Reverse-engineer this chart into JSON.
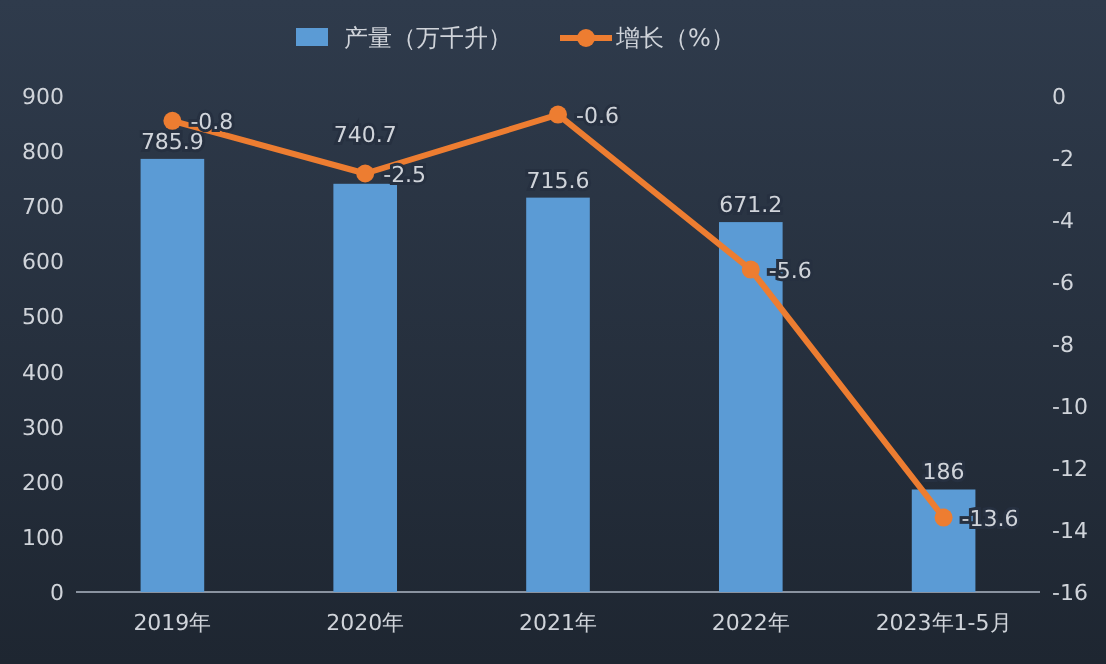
{
  "chart_data": {
    "type": "bar",
    "categories": [
      "2019年",
      "2020年",
      "2021年",
      "2022年",
      "2023年1-5月"
    ],
    "series": [
      {
        "name": "产量（万千升）",
        "color": "#5b9bd5",
        "values": [
          785.9,
          740.7,
          715.6,
          671.2,
          186
        ]
      },
      {
        "name": "增长（%）",
        "type": "line",
        "axis": "y2",
        "color": "#ed7d31",
        "values": [
          -0.8,
          -2.5,
          -0.6,
          -5.6,
          -13.6
        ]
      }
    ],
    "ylim": [
      0,
      900
    ],
    "yticks": [
      0,
      100,
      200,
      300,
      400,
      500,
      600,
      700,
      800,
      900
    ],
    "y2lim": [
      -16,
      0
    ],
    "y2ticks": [
      -16,
      -14,
      -12,
      -10,
      -8,
      -6,
      -4,
      -2,
      0
    ],
    "data_labels": true,
    "legend": "top",
    "marker": "circle"
  }
}
